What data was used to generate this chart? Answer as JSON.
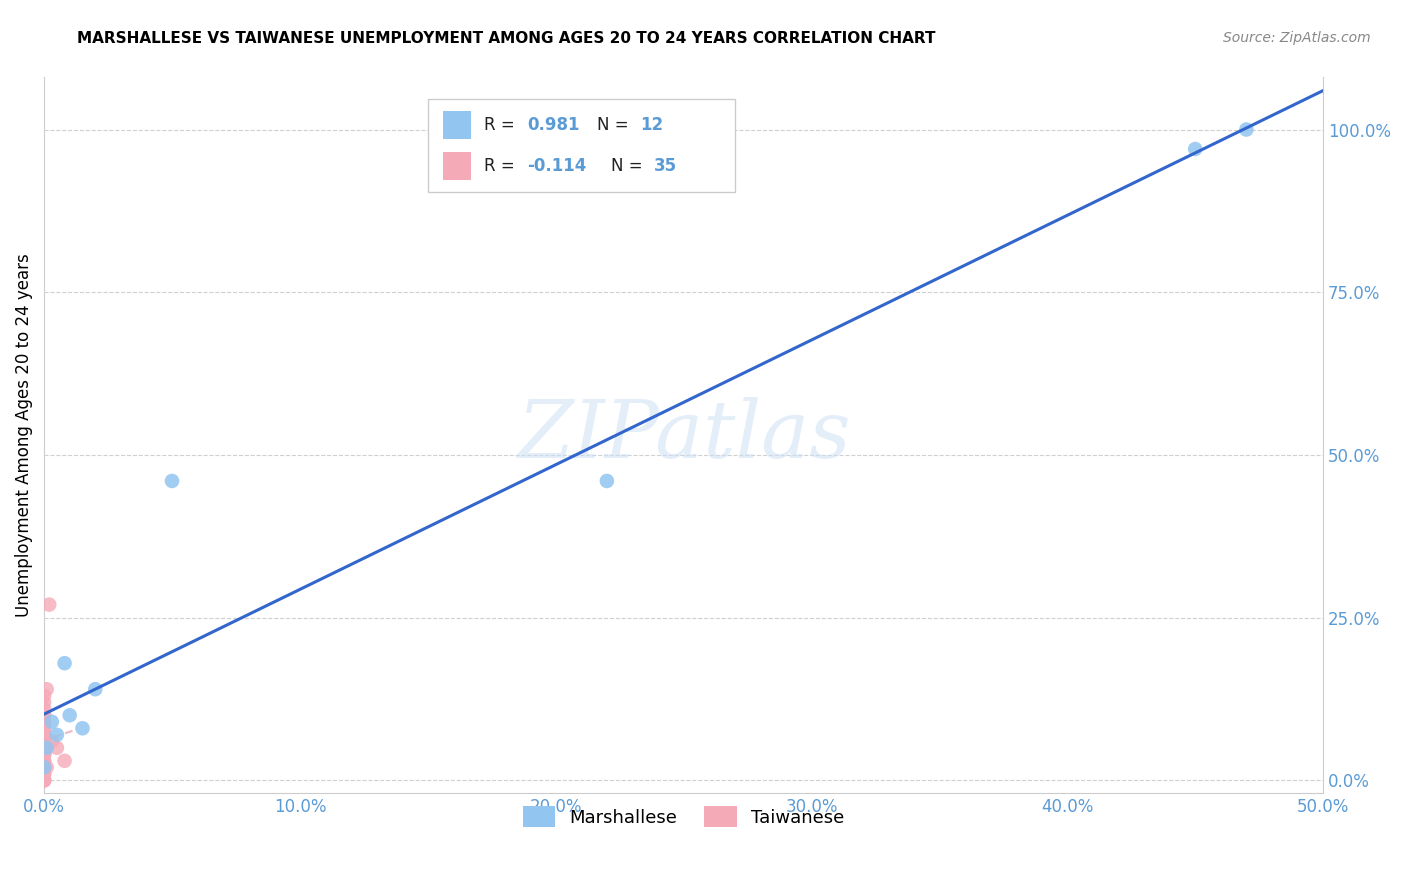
{
  "title": "MARSHALLESE VS TAIWANESE UNEMPLOYMENT AMONG AGES 20 TO 24 YEARS CORRELATION CHART",
  "source": "Source: ZipAtlas.com",
  "ylabel": "Unemployment Among Ages 20 to 24 years",
  "xlim": [
    0.0,
    0.5
  ],
  "ylim": [
    -0.02,
    1.08
  ],
  "x_ticks": [
    0.0,
    0.1,
    0.2,
    0.3,
    0.4,
    0.5
  ],
  "x_tick_labels": [
    "0.0%",
    "10.0%",
    "20.0%",
    "30.0%",
    "40.0%",
    "50.0%"
  ],
  "y_ticks": [
    0.0,
    0.25,
    0.5,
    0.75,
    1.0
  ],
  "y_tick_labels": [
    "0.0%",
    "25.0%",
    "50.0%",
    "75.0%",
    "100.0%"
  ],
  "tick_color": "#5b9bd5",
  "grid_color": "#d0d0d0",
  "watermark_text": "ZIPatlas",
  "marshallese_color": "#92c5f0",
  "taiwanese_color": "#f5aab8",
  "trend_blue_color": "#3366cc",
  "trend_pink_color": "#f0b8c8",
  "marshallese_x": [
    0.0,
    0.001,
    0.003,
    0.005,
    0.008,
    0.01,
    0.015,
    0.02,
    0.05,
    0.22,
    0.45,
    0.47
  ],
  "marshallese_y": [
    0.02,
    0.05,
    0.09,
    0.07,
    0.18,
    0.1,
    0.08,
    0.14,
    0.46,
    0.46,
    0.97,
    1.0
  ],
  "taiwanese_x": [
    0.0,
    0.0,
    0.0,
    0.0,
    0.0,
    0.0,
    0.0,
    0.0,
    0.0,
    0.0,
    0.0,
    0.0,
    0.0,
    0.0,
    0.0,
    0.0,
    0.0,
    0.0,
    0.0,
    0.0,
    0.0,
    0.0,
    0.0,
    0.0,
    0.0,
    0.0,
    0.0,
    0.0,
    0.0,
    0.001,
    0.001,
    0.002,
    0.003,
    0.005,
    0.008
  ],
  "taiwanese_y": [
    0.0,
    0.0,
    0.0,
    0.01,
    0.01,
    0.02,
    0.02,
    0.03,
    0.03,
    0.04,
    0.04,
    0.04,
    0.05,
    0.05,
    0.05,
    0.06,
    0.06,
    0.07,
    0.07,
    0.07,
    0.08,
    0.08,
    0.09,
    0.09,
    0.1,
    0.1,
    0.11,
    0.12,
    0.13,
    0.14,
    0.02,
    0.27,
    0.06,
    0.05,
    0.03
  ],
  "legend_label_marshallese": "Marshallese",
  "legend_label_taiwanese": "Taiwanese",
  "leg_r1_black": "R = ",
  "leg_r1_blue": "0.981",
  "leg_n1_black": "  N = ",
  "leg_n1_blue": "12",
  "leg_r2_black": "R = ",
  "leg_r2_blue": "-0.114",
  "leg_n2_black": "  N = ",
  "leg_n2_blue": "35"
}
